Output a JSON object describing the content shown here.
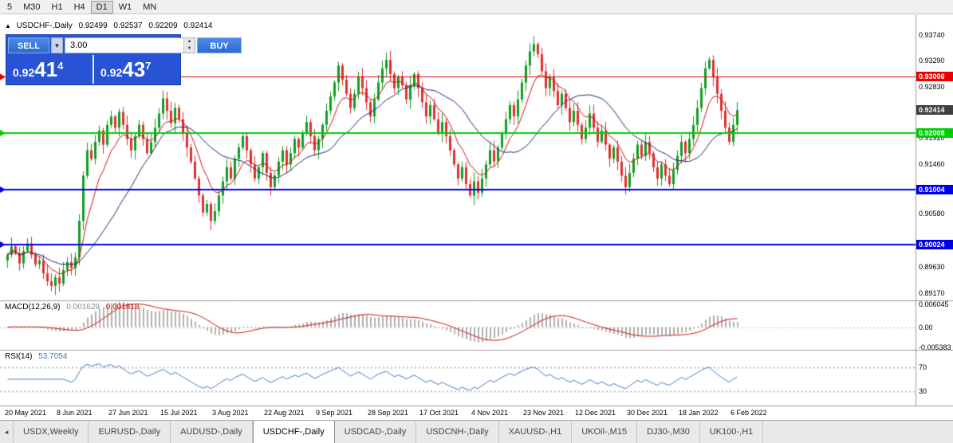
{
  "icons": {
    "collapse_arrow": "▲",
    "dropdown_arrow": "▼",
    "spin_up": "▲",
    "spin_down": "▼",
    "tab_scroll_left": "◄"
  },
  "toolbar": {
    "timeframes": [
      "5",
      "M30",
      "H1",
      "H4",
      "D1",
      "W1",
      "MN"
    ],
    "active": "D1"
  },
  "chart_info": {
    "symbol": "USDCHF-,Daily",
    "open": "0.92499",
    "high": "0.92537",
    "low": "0.92209",
    "close": "0.92414"
  },
  "trade_panel": {
    "sell_label": "SELL",
    "buy_label": "BUY",
    "volume": "3.00",
    "sell_price": {
      "prefix": "0.92",
      "main": "41",
      "sup": "4"
    },
    "buy_price": {
      "prefix": "0.92",
      "main": "43",
      "sup": "7"
    }
  },
  "price_axis": {
    "labels": [
      "0.93740",
      "0.93290",
      "0.92830",
      "0.91920",
      "0.91460",
      "0.90580",
      "0.89630",
      "0.89170"
    ]
  },
  "levels": [
    {
      "label": "0.93006",
      "value": 0.93006,
      "color": "#e60000",
      "line_width": 1
    },
    {
      "label": "0.92008",
      "value": 0.92008,
      "color": "#00ce00",
      "line_width": 2
    },
    {
      "label": "0.91004",
      "value": 0.91004,
      "color": "#0000e6",
      "line_width": 2
    },
    {
      "label": "0.90024",
      "value": 0.90024,
      "color": "#0000e6",
      "line_width": 2
    }
  ],
  "current_price_tag": {
    "label": "0.92414",
    "value": 0.92414,
    "color": "#3f3f3f"
  },
  "macd": {
    "title": "MACD(12,26,9)",
    "value_main": "0.001629",
    "value_signal": "0.001818",
    "axis_labels": [
      {
        "text": "0.006045",
        "value": 0.006045
      },
      {
        "text": "0.00",
        "value": 0
      },
      {
        "text": "-0.005383",
        "value": -0.005383
      }
    ]
  },
  "rsi": {
    "title": "RSI(14)",
    "value": "53.7054",
    "axis_labels": [
      {
        "text": "70",
        "value": 70
      },
      {
        "text": "30",
        "value": 30
      }
    ],
    "levels": [
      70,
      30
    ]
  },
  "date_axis": [
    "20 May 2021",
    "8 Jun 2021",
    "27 Jun 2021",
    "15 Jul 2021",
    "3 Aug 2021",
    "22 Aug 2021",
    "9 Sep 2021",
    "28 Sep 2021",
    "17 Oct 2021",
    "4 Nov 2021",
    "23 Nov 2021",
    "12 Dec 2021",
    "30 Dec 2021",
    "18 Jan 2022",
    "6 Feb 2022"
  ],
  "tabbar": {
    "active_index": 3,
    "tabs": [
      "USDX,Weekly",
      "EURUSD-,Daily",
      "AUDUSD-,Daily",
      "USDCHF-,Daily",
      "USDCAD-,Daily",
      "USDCNH-,Daily",
      "XAUUSD-,H1",
      "UKOil-,M15",
      "DJ30-,M30",
      "UK100-,H1"
    ]
  },
  "colors": {
    "candle_up": "#109e22",
    "candle_down": "#e03030",
    "ma_fast": "#c81616",
    "ma_slow": "#1b2a6b",
    "macd_hist": "#b0b0b0",
    "macd_signal": "#c81616",
    "rsi_line": "#4379c4",
    "dashed_level": "#bdbdbd",
    "separator": "#9a9a9a"
  },
  "chart_data": {
    "type": "candlestick",
    "symbol": "USDCHF",
    "period": "Daily",
    "price_range": [
      0.8917,
      0.9374
    ],
    "macd_params": [
      12,
      26,
      9
    ],
    "rsi_period": 14,
    "first_open": 0.8975,
    "closes": [
      0.8985,
      0.9,
      0.8988,
      0.897,
      0.8992,
      0.9005,
      0.8985,
      0.8968,
      0.8975,
      0.8952,
      0.8938,
      0.893,
      0.8945,
      0.8934,
      0.8958,
      0.8972,
      0.8962,
      0.898,
      0.9045,
      0.9125,
      0.917,
      0.9155,
      0.9185,
      0.9205,
      0.918,
      0.9215,
      0.923,
      0.921,
      0.9238,
      0.9215,
      0.919,
      0.917,
      0.9195,
      0.9215,
      0.919,
      0.9165,
      0.9185,
      0.921,
      0.9235,
      0.9262,
      0.924,
      0.9218,
      0.9245,
      0.9225,
      0.92,
      0.9175,
      0.915,
      0.912,
      0.909,
      0.906,
      0.9075,
      0.9045,
      0.9062,
      0.909,
      0.9115,
      0.914,
      0.912,
      0.9155,
      0.9175,
      0.9195,
      0.917,
      0.9145,
      0.912,
      0.914,
      0.9165,
      0.913,
      0.9105,
      0.9125,
      0.915,
      0.917,
      0.9145,
      0.9165,
      0.919,
      0.9175,
      0.92,
      0.922,
      0.9195,
      0.917,
      0.919,
      0.9215,
      0.924,
      0.9265,
      0.929,
      0.932,
      0.9295,
      0.927,
      0.9245,
      0.927,
      0.93,
      0.928,
      0.9255,
      0.923,
      0.926,
      0.929,
      0.9315,
      0.933,
      0.9305,
      0.928,
      0.93,
      0.9285,
      0.926,
      0.9285,
      0.9305,
      0.928,
      0.9255,
      0.923,
      0.925,
      0.9225,
      0.92,
      0.922,
      0.9195,
      0.917,
      0.9145,
      0.912,
      0.914,
      0.911,
      0.909,
      0.9115,
      0.9095,
      0.912,
      0.9145,
      0.917,
      0.915,
      0.9175,
      0.92,
      0.9225,
      0.925,
      0.923,
      0.926,
      0.929,
      0.932,
      0.9345,
      0.9358,
      0.934,
      0.931,
      0.928,
      0.93,
      0.9275,
      0.925,
      0.927,
      0.9245,
      0.922,
      0.924,
      0.9215,
      0.919,
      0.921,
      0.9235,
      0.921,
      0.9185,
      0.9205,
      0.918,
      0.9155,
      0.9175,
      0.915,
      0.9125,
      0.9105,
      0.913,
      0.9155,
      0.918,
      0.916,
      0.9185,
      0.9165,
      0.914,
      0.912,
      0.9145,
      0.9125,
      0.911,
      0.9135,
      0.916,
      0.9185,
      0.9165,
      0.919,
      0.9215,
      0.9245,
      0.928,
      0.9315,
      0.933,
      0.93,
      0.927,
      0.924,
      0.921,
      0.9185,
      0.9215,
      0.9241
    ]
  }
}
